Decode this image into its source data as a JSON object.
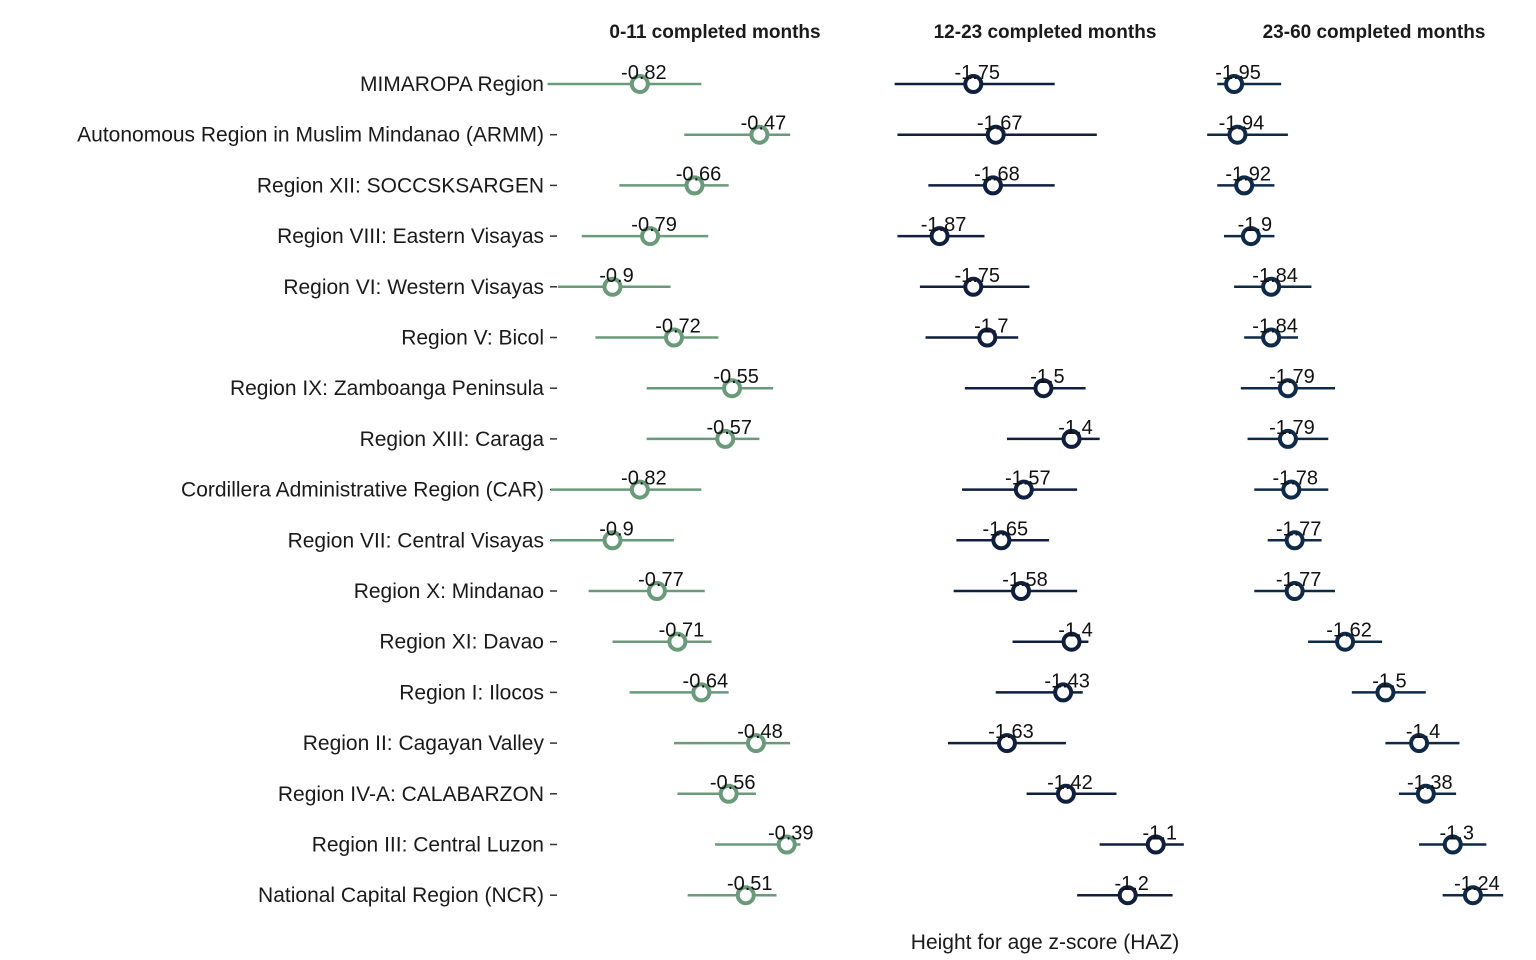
{
  "chart_data": {
    "type": "scatter",
    "subtype": "dot-and-whisker (point estimates with confidence intervals), faceted by age group",
    "xlabel": "Height for age z-score (HAZ)",
    "legend": "none",
    "grid": false,
    "categories": [
      "MIMAROPA Region",
      "Autonomous Region in Muslim Mindanao (ARMM)",
      "Region XII: SOCCSKSARGEN",
      "Region VIII: Eastern Visayas",
      "Region VI: Western Visayas",
      "Region V: Bicol",
      "Region IX: Zamboanga Peninsula",
      "Region XIII: Caraga",
      "Cordillera Administrative Region (CAR)",
      "Region VII: Central Visayas",
      "Region X: Mindanao",
      "Region XI: Davao",
      "Region I: Ilocos",
      "Region II: Cagayan Valley",
      "Region IV-A: CALABARZON",
      "Region III: Central Luzon",
      "National Capital Region (NCR)"
    ],
    "panels": [
      {
        "title": "0-11 completed months",
        "color": "#6a9a7a",
        "xlim": [
          -1.2,
          0.0
        ],
        "values": [
          -0.82,
          -0.47,
          -0.66,
          -0.79,
          -0.9,
          -0.72,
          -0.55,
          -0.57,
          -0.82,
          -0.9,
          -0.77,
          -0.71,
          -0.64,
          -0.48,
          -0.56,
          -0.39,
          -0.51
        ],
        "ci_low": [
          -1.09,
          -0.69,
          -0.88,
          -0.99,
          -1.06,
          -0.95,
          -0.8,
          -0.8,
          -1.08,
          -1.08,
          -0.97,
          -0.9,
          -0.85,
          -0.72,
          -0.71,
          -0.6,
          -0.68
        ],
        "ci_high": [
          -0.64,
          -0.38,
          -0.56,
          -0.62,
          -0.73,
          -0.59,
          -0.43,
          -0.47,
          -0.64,
          -0.72,
          -0.63,
          -0.61,
          -0.56,
          -0.38,
          -0.48,
          -0.35,
          -0.42
        ],
        "labels": [
          "-0.82",
          "-0.47",
          "-0.66",
          "-0.79",
          "-0.9",
          "-0.72",
          "-0.55",
          "-0.57",
          "-0.82",
          "-0.9",
          "-0.77",
          "-0.71",
          "-0.64",
          "-0.48",
          "-0.56",
          "-0.39",
          "-0.51"
        ]
      },
      {
        "title": "12-23 completed months",
        "color": "#0f1f3d",
        "xlim": [
          -2.1,
          -0.8
        ],
        "values": [
          -1.75,
          -1.67,
          -1.68,
          -1.87,
          -1.75,
          -1.7,
          -1.5,
          -1.4,
          -1.57,
          -1.65,
          -1.58,
          -1.4,
          -1.43,
          -1.63,
          -1.42,
          -1.1,
          -1.2
        ],
        "ci_low": [
          -2.03,
          -2.02,
          -1.91,
          -2.02,
          -1.94,
          -1.92,
          -1.78,
          -1.63,
          -1.79,
          -1.81,
          -1.82,
          -1.61,
          -1.67,
          -1.84,
          -1.56,
          -1.3,
          -1.38
        ],
        "ci_high": [
          -1.46,
          -1.31,
          -1.46,
          -1.71,
          -1.55,
          -1.59,
          -1.35,
          -1.3,
          -1.38,
          -1.48,
          -1.38,
          -1.34,
          -1.36,
          -1.42,
          -1.24,
          -1.0,
          -1.04
        ],
        "labels": [
          "-1.75",
          "-1.67",
          "-1.68",
          "-1.87",
          "-1.75",
          "-1.7",
          "-1.5",
          "-1.4",
          "-1.57",
          "-1.65",
          "-1.58",
          "-1.4",
          "-1.43",
          "-1.63",
          "-1.42",
          "-1.1",
          "-1.2"
        ]
      },
      {
        "title": "23-60 completed months",
        "color": "#0e2a47",
        "xlim": [
          -2.2,
          -1.1
        ],
        "values": [
          -1.95,
          -1.94,
          -1.92,
          -1.9,
          -1.84,
          -1.84,
          -1.79,
          -1.79,
          -1.78,
          -1.77,
          -1.77,
          -1.62,
          -1.5,
          -1.4,
          -1.38,
          -1.3,
          -1.24
        ],
        "ci_low": [
          -2.0,
          -2.03,
          -2.0,
          -1.98,
          -1.95,
          -1.92,
          -1.93,
          -1.91,
          -1.89,
          -1.85,
          -1.89,
          -1.73,
          -1.6,
          -1.5,
          -1.46,
          -1.4,
          -1.33
        ],
        "ci_high": [
          -1.81,
          -1.79,
          -1.83,
          -1.83,
          -1.72,
          -1.76,
          -1.65,
          -1.67,
          -1.67,
          -1.69,
          -1.65,
          -1.51,
          -1.38,
          -1.28,
          -1.29,
          -1.2,
          -1.15
        ],
        "labels": [
          "-1.95",
          "-1.94",
          "-1.92",
          "-1.9",
          "-1.84",
          "-1.84",
          "-1.79",
          "-1.79",
          "-1.78",
          "-1.77",
          "-1.77",
          "-1.62",
          "-1.5",
          "-1.4",
          "-1.38",
          "-1.3",
          "-1.24"
        ]
      }
    ]
  }
}
